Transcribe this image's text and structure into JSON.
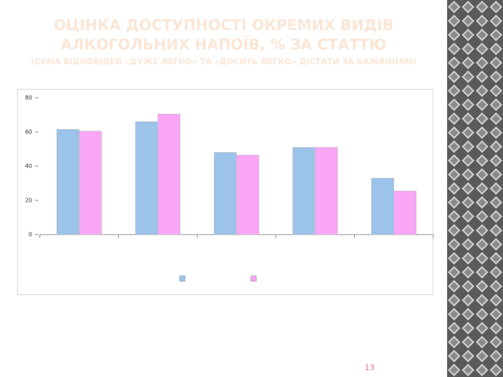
{
  "chart_data": {
    "type": "bar",
    "title": "ОЦІНКА ДОСТУПНОСТІ ОКРЕМИХ ВИДІВ АЛКОГОЛЬНИХ НАПОЇВ, % ЗА СТАТТЮ",
    "subtitle": "(СУМА ВІДПОВІДЕЙ «ДУЖЕ ЛЕГКО» ТА «ДОСИТЬ ЛЕГКО» ДІСТАТИ ЗА БАЖАННЯМ)",
    "categories": [
      null,
      null,
      null,
      null,
      null
    ],
    "series": [
      {
        "color": "#9cc3ea",
        "values": [
          61.5,
          66,
          48,
          51,
          33
        ]
      },
      {
        "color": "#f9a6f6",
        "values": [
          60.5,
          70.5,
          46.5,
          51,
          25.5
        ]
      }
    ],
    "ylim": [
      0,
      80
    ],
    "yticks": [
      0,
      20,
      40,
      60,
      80
    ]
  },
  "page_number": "13"
}
